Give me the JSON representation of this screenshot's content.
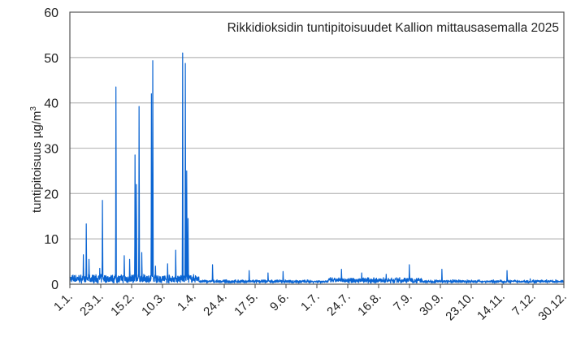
{
  "chart_data": {
    "type": "line",
    "title": "Rikkidioksidin tuntipitoisuudet Kallion mittausasemalla 2025",
    "xlabel": "",
    "ylabel": "tuntipitoisuus µg/m³",
    "ylabel_base": "tuntipitoisuus µg/m",
    "ylabel_sup": "3",
    "ylim": [
      0,
      60
    ],
    "yticks": [
      0,
      10,
      20,
      30,
      40,
      50,
      60
    ],
    "grid": true,
    "legend": null,
    "series_color": "#0a64d2",
    "x_tick_labels": [
      "1.1.",
      "23.1.",
      "15.2.",
      "10.3.",
      "1.4.",
      "24.4.",
      "17.5.",
      "9.6.",
      "1.7.",
      "24.7.",
      "16.8.",
      "7.9.",
      "30.9.",
      "23.10.",
      "14.11.",
      "7.12.",
      "30.12."
    ],
    "x_range_days": [
      0,
      364
    ],
    "peaks": [
      {
        "day": 12,
        "date": "13.1.",
        "value": 13.3
      },
      {
        "day": 10,
        "date": "11.1.",
        "value": 6.5
      },
      {
        "day": 14,
        "date": "15.1.",
        "value": 5.5
      },
      {
        "day": 24,
        "date": "25.1.",
        "value": 18.5
      },
      {
        "day": 22,
        "date": "23.1.",
        "value": 3.5
      },
      {
        "day": 34,
        "date": "4.2.",
        "value": 43.5
      },
      {
        "day": 40,
        "date": "10.2.",
        "value": 6.3
      },
      {
        "day": 44,
        "date": "14.2.",
        "value": 5.5
      },
      {
        "day": 48,
        "date": "18.2.",
        "value": 28.5
      },
      {
        "day": 49,
        "date": "19.2.",
        "value": 22.0
      },
      {
        "day": 51,
        "date": "21.2.",
        "value": 39.2
      },
      {
        "day": 53,
        "date": "23.2.",
        "value": 7.0
      },
      {
        "day": 60,
        "date": "2.3.",
        "value": 42.0
      },
      {
        "day": 61,
        "date": "3.3.",
        "value": 49.3
      },
      {
        "day": 63,
        "date": "5.3.",
        "value": 4.0
      },
      {
        "day": 72,
        "date": "14.3.",
        "value": 4.5
      },
      {
        "day": 78,
        "date": "20.3.",
        "value": 7.5
      },
      {
        "day": 83,
        "date": "25.3.",
        "value": 51.0
      },
      {
        "day": 85,
        "date": "27.3.",
        "value": 48.7
      },
      {
        "day": 86,
        "date": "28.3.",
        "value": 25.0
      },
      {
        "day": 87,
        "date": "29.3.",
        "value": 14.5
      },
      {
        "day": 105,
        "date": "16.4.",
        "value": 4.3
      },
      {
        "day": 132,
        "date": "13.5.",
        "value": 3.0
      },
      {
        "day": 146,
        "date": "27.5.",
        "value": 2.5
      },
      {
        "day": 157,
        "date": "7.6.",
        "value": 2.8
      },
      {
        "day": 200,
        "date": "20.7.",
        "value": 3.3
      },
      {
        "day": 215,
        "date": "4.8.",
        "value": 2.5
      },
      {
        "day": 233,
        "date": "22.8.",
        "value": 2.2
      },
      {
        "day": 250,
        "date": "8.9.",
        "value": 4.3
      },
      {
        "day": 274,
        "date": "2.10.",
        "value": 3.3
      },
      {
        "day": 322,
        "date": "19.11.",
        "value": 3.0
      },
      {
        "day": 339,
        "date": "6.12.",
        "value": 1.2
      }
    ],
    "baseline_typical": 0.5
  }
}
